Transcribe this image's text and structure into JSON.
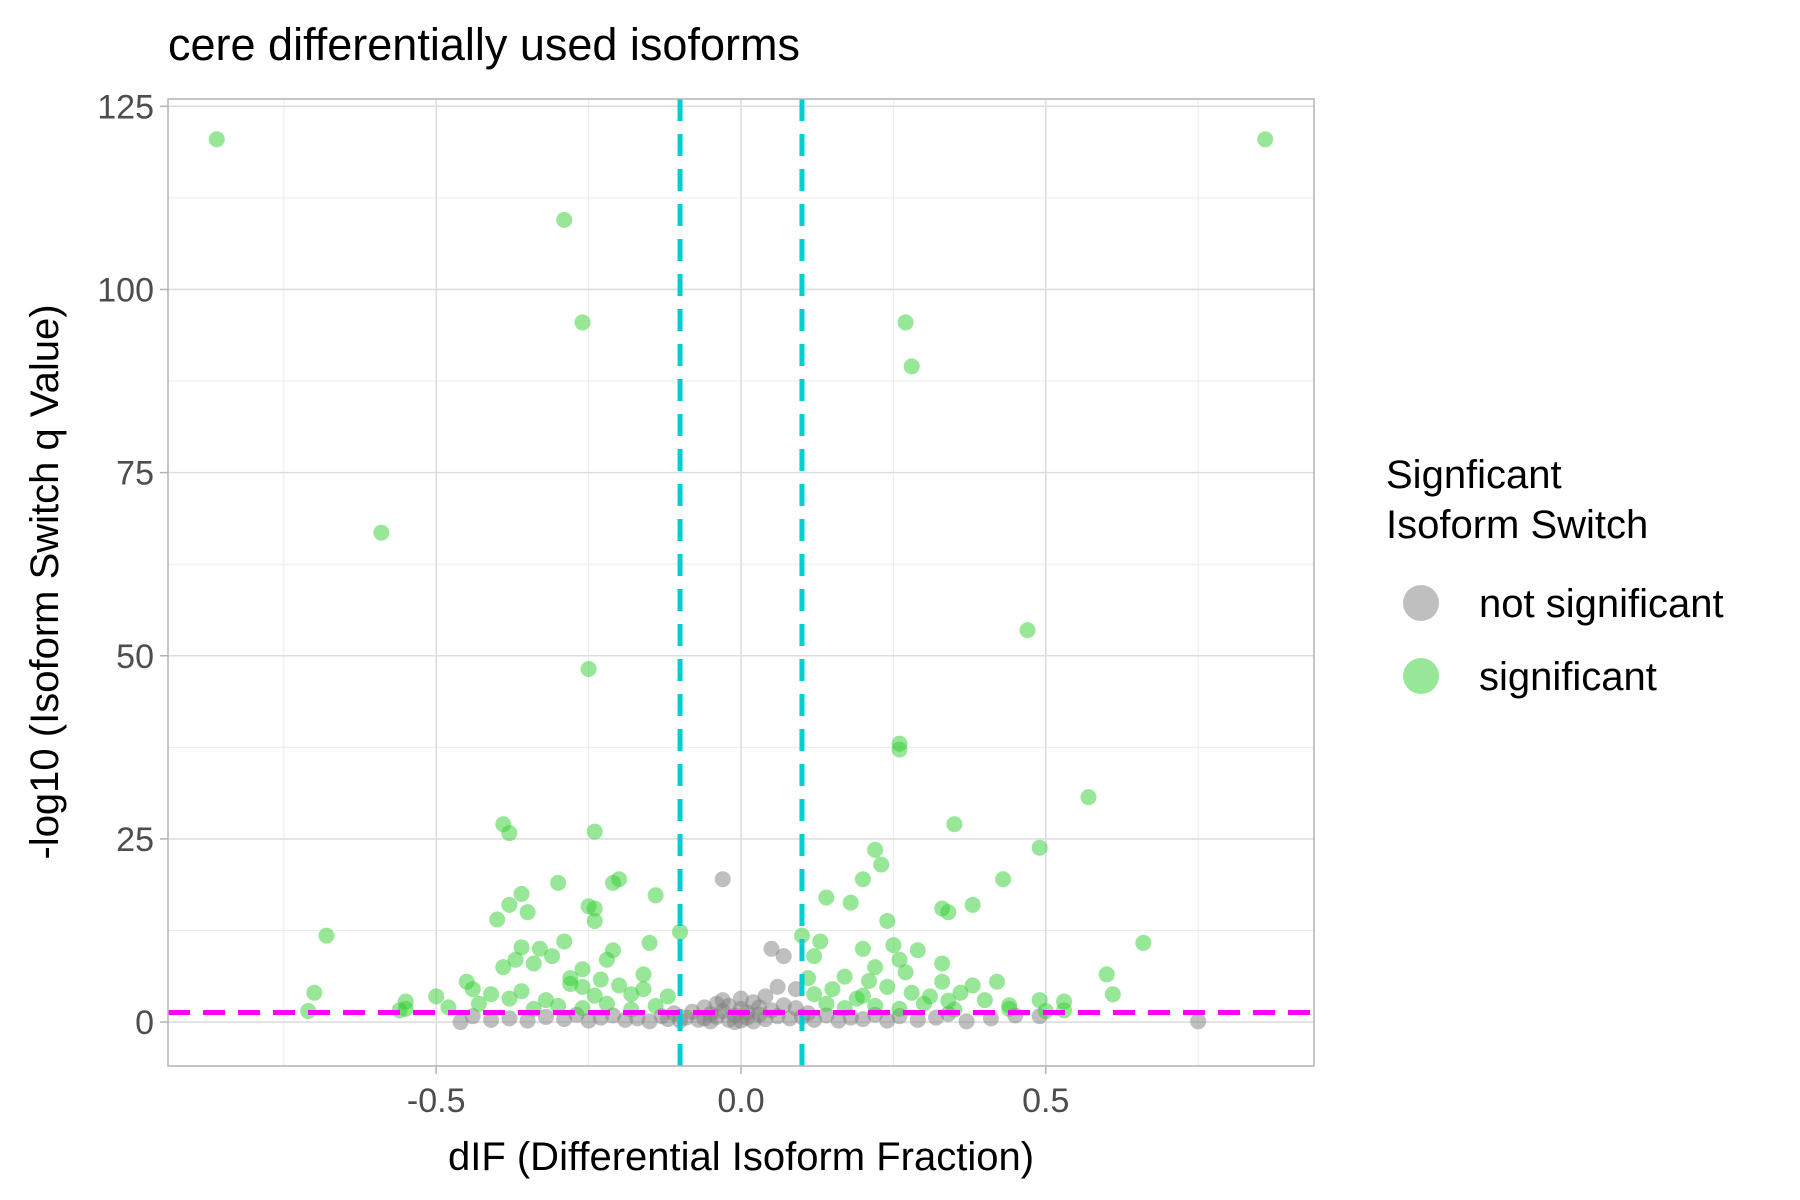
{
  "chart_data": {
    "type": "scatter",
    "title": "cere differentially used isoforms",
    "xlabel": "dIF (Differential Isoform Fraction)",
    "ylabel": "-log10 (Isoform Switch q Value)",
    "xlim": [
      -0.94,
      0.94
    ],
    "ylim": [
      -6,
      126
    ],
    "x_ticks": [
      -0.5,
      0.0,
      0.5
    ],
    "x_tick_labels": [
      "-0.5",
      "0.0",
      "0.5"
    ],
    "y_ticks": [
      0,
      25,
      50,
      75,
      100,
      125
    ],
    "y_tick_labels": [
      "0",
      "25",
      "50",
      "75",
      "100",
      "125"
    ],
    "grid": true,
    "legend": {
      "title_lines": [
        "Signficant",
        "Isoform Switch"
      ],
      "position": "right"
    },
    "reference_lines": {
      "vertical": {
        "values": [
          -0.1,
          0.1
        ],
        "color": "#00CED1",
        "style": "dashed"
      },
      "horizontal": {
        "values": [
          1.3
        ],
        "color": "#FF00FF",
        "style": "dashed"
      }
    },
    "series": [
      {
        "name": "not significant",
        "color": "#7f7f7f",
        "points": [
          [
            -0.46,
            0.0
          ],
          [
            -0.44,
            0.8
          ],
          [
            -0.41,
            0.3
          ],
          [
            -0.38,
            0.5
          ],
          [
            -0.35,
            0.2
          ],
          [
            -0.32,
            0.7
          ],
          [
            -0.29,
            0.4
          ],
          [
            -0.27,
            1.0
          ],
          [
            -0.25,
            0.2
          ],
          [
            -0.23,
            0.6
          ],
          [
            -0.21,
            0.9
          ],
          [
            -0.19,
            0.3
          ],
          [
            -0.17,
            0.5
          ],
          [
            -0.15,
            0.1
          ],
          [
            -0.13,
            0.8
          ],
          [
            -0.12,
            0.4
          ],
          [
            -0.11,
            1.2
          ],
          [
            -0.1,
            0.2
          ],
          [
            -0.09,
            0.6
          ],
          [
            -0.08,
            1.4
          ],
          [
            -0.07,
            0.3
          ],
          [
            -0.06,
            2.0
          ],
          [
            -0.06,
            0.5
          ],
          [
            -0.05,
            1.1
          ],
          [
            -0.05,
            0.1
          ],
          [
            -0.04,
            2.5
          ],
          [
            -0.04,
            0.7
          ],
          [
            -0.03,
            19.5
          ],
          [
            -0.03,
            3.0
          ],
          [
            -0.03,
            1.5
          ],
          [
            -0.02,
            0.3
          ],
          [
            -0.02,
            2.2
          ],
          [
            -0.01,
            0.9
          ],
          [
            -0.01,
            0.0
          ],
          [
            0.0,
            1.8
          ],
          [
            0.0,
            0.2
          ],
          [
            0.0,
            3.2
          ],
          [
            0.01,
            0.6
          ],
          [
            0.01,
            1.3
          ],
          [
            0.02,
            2.7
          ],
          [
            0.02,
            0.1
          ],
          [
            0.03,
            1.0
          ],
          [
            0.03,
            2.0
          ],
          [
            0.04,
            0.4
          ],
          [
            0.04,
            3.5
          ],
          [
            0.05,
            1.6
          ],
          [
            0.05,
            10.0
          ],
          [
            0.06,
            0.8
          ],
          [
            0.06,
            4.8
          ],
          [
            0.07,
            9.0
          ],
          [
            0.07,
            2.3
          ],
          [
            0.08,
            0.5
          ],
          [
            0.09,
            1.9
          ],
          [
            0.09,
            4.5
          ],
          [
            0.1,
            0.7
          ],
          [
            0.11,
            1.2
          ],
          [
            0.12,
            0.3
          ],
          [
            0.14,
            0.9
          ],
          [
            0.16,
            0.2
          ],
          [
            0.18,
            0.6
          ],
          [
            0.2,
            0.4
          ],
          [
            0.22,
            1.0
          ],
          [
            0.24,
            0.2
          ],
          [
            0.26,
            0.8
          ],
          [
            0.29,
            0.3
          ],
          [
            0.32,
            0.6
          ],
          [
            0.34,
            1.1
          ],
          [
            0.37,
            0.1
          ],
          [
            0.41,
            0.5
          ],
          [
            0.45,
            0.9
          ],
          [
            0.49,
            0.8
          ],
          [
            0.75,
            0.1
          ]
        ]
      },
      {
        "name": "significant",
        "color": "#32CD32",
        "points": [
          [
            -0.86,
            120.5
          ],
          [
            -0.29,
            109.5
          ],
          [
            -0.26,
            95.5
          ],
          [
            -0.59,
            66.8
          ],
          [
            -0.25,
            48.2
          ],
          [
            0.86,
            120.5
          ],
          [
            0.27,
            95.5
          ],
          [
            0.28,
            89.5
          ],
          [
            0.47,
            53.5
          ],
          [
            0.26,
            38.0
          ],
          [
            0.26,
            37.2
          ],
          [
            0.57,
            30.7
          ],
          [
            -0.39,
            27.0
          ],
          [
            -0.38,
            25.8
          ],
          [
            -0.24,
            26.0
          ],
          [
            0.35,
            27.0
          ],
          [
            0.49,
            23.8
          ],
          [
            0.22,
            23.5
          ],
          [
            0.23,
            21.5
          ],
          [
            -0.3,
            19.0
          ],
          [
            -0.2,
            19.5
          ],
          [
            -0.21,
            19.0
          ],
          [
            -0.36,
            17.5
          ],
          [
            -0.14,
            17.3
          ],
          [
            0.14,
            17.0
          ],
          [
            0.2,
            19.5
          ],
          [
            0.43,
            19.5
          ],
          [
            -0.38,
            16.0
          ],
          [
            -0.25,
            15.8
          ],
          [
            -0.24,
            15.5
          ],
          [
            -0.35,
            15.0
          ],
          [
            0.18,
            16.3
          ],
          [
            0.33,
            15.5
          ],
          [
            0.34,
            15.0
          ],
          [
            0.38,
            16.0
          ],
          [
            -0.4,
            14.0
          ],
          [
            -0.24,
            13.8
          ],
          [
            0.24,
            13.8
          ],
          [
            -0.68,
            11.8
          ],
          [
            -0.1,
            12.3
          ],
          [
            0.1,
            11.8
          ],
          [
            0.13,
            11.0
          ],
          [
            0.66,
            10.8
          ],
          [
            -0.29,
            11.0
          ],
          [
            -0.15,
            10.8
          ],
          [
            -0.36,
            10.2
          ],
          [
            -0.33,
            10.0
          ],
          [
            -0.21,
            9.8
          ],
          [
            0.2,
            10.0
          ],
          [
            0.25,
            10.5
          ],
          [
            0.29,
            9.8
          ],
          [
            -0.37,
            8.5
          ],
          [
            -0.31,
            9.0
          ],
          [
            -0.34,
            8.0
          ],
          [
            -0.22,
            8.5
          ],
          [
            0.12,
            9.0
          ],
          [
            0.26,
            8.5
          ],
          [
            0.33,
            8.0
          ],
          [
            -0.39,
            7.5
          ],
          [
            -0.26,
            7.2
          ],
          [
            0.22,
            7.5
          ],
          [
            0.6,
            6.5
          ],
          [
            -0.45,
            5.5
          ],
          [
            -0.28,
            6.0
          ],
          [
            -0.23,
            5.8
          ],
          [
            0.11,
            6.0
          ],
          [
            0.17,
            6.2
          ],
          [
            0.33,
            5.5
          ],
          [
            0.38,
            5.0
          ],
          [
            0.42,
            5.5
          ],
          [
            -0.44,
            4.5
          ],
          [
            -0.41,
            3.8
          ],
          [
            -0.36,
            4.2
          ],
          [
            -0.32,
            3.0
          ],
          [
            -0.26,
            4.8
          ],
          [
            -0.2,
            5.0
          ],
          [
            -0.18,
            3.8
          ],
          [
            -0.16,
            4.5
          ],
          [
            -0.12,
            3.5
          ],
          [
            0.12,
            3.8
          ],
          [
            0.15,
            4.5
          ],
          [
            0.19,
            3.2
          ],
          [
            0.24,
            4.8
          ],
          [
            0.28,
            4.0
          ],
          [
            0.31,
            3.5
          ],
          [
            0.36,
            4.0
          ],
          [
            0.4,
            3.0
          ],
          [
            -0.7,
            4.0
          ],
          [
            0.61,
            3.8
          ],
          [
            -0.5,
            3.5
          ],
          [
            -0.55,
            2.8
          ],
          [
            -0.43,
            2.5
          ],
          [
            -0.3,
            2.2
          ],
          [
            -0.22,
            2.5
          ],
          [
            -0.14,
            2.2
          ],
          [
            0.14,
            2.5
          ],
          [
            0.22,
            2.2
          ],
          [
            0.3,
            2.5
          ],
          [
            0.44,
            2.3
          ],
          [
            0.49,
            3.0
          ],
          [
            0.53,
            2.8
          ],
          [
            -0.55,
            1.8
          ],
          [
            -0.48,
            2.0
          ],
          [
            -0.34,
            1.8
          ],
          [
            -0.26,
            1.9
          ],
          [
            -0.18,
            1.7
          ],
          [
            0.17,
            1.9
          ],
          [
            0.26,
            1.8
          ],
          [
            0.35,
            1.7
          ],
          [
            0.44,
            1.8
          ],
          [
            0.53,
            1.6
          ],
          [
            -0.71,
            1.5
          ],
          [
            -0.56,
            1.6
          ],
          [
            0.5,
            1.5
          ],
          [
            -0.38,
            3.2
          ],
          [
            -0.24,
            3.6
          ],
          [
            0.2,
            3.6
          ],
          [
            0.34,
            2.9
          ],
          [
            -0.16,
            6.5
          ],
          [
            0.27,
            6.8
          ],
          [
            -0.28,
            5.2
          ],
          [
            0.21,
            5.6
          ]
        ]
      }
    ]
  }
}
